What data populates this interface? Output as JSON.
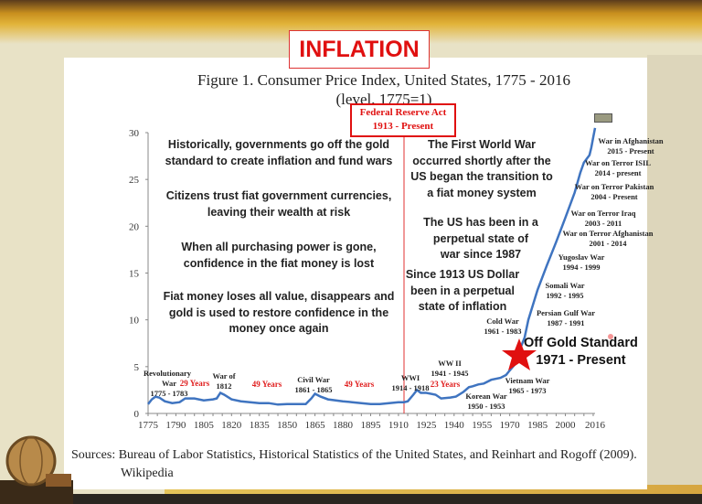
{
  "slide": {
    "heading": "INFLATION",
    "colors": {
      "accent_red": "#e01010",
      "line_blue": "#3f74c0",
      "background": "#e8e2c6"
    }
  },
  "chart_data": {
    "type": "line",
    "title": "Figure 1. Consumer Price Index, United States,  1775 - 2016",
    "subtitle": "(level, 1775=1)",
    "xlabel": "",
    "ylabel": "",
    "xlim": [
      1775,
      2016
    ],
    "ylim": [
      0,
      30
    ],
    "grid": false,
    "x_ticks": [
      "1775",
      "1790",
      "1805",
      "1820",
      "1835",
      "1850",
      "1865",
      "1880",
      "1895",
      "1910",
      "1925",
      "1940",
      "1955",
      "1970",
      "1985",
      "2000",
      "2016"
    ],
    "y_ticks": [
      "0",
      "5",
      "10",
      "15",
      "20",
      "25",
      "30"
    ],
    "series": [
      {
        "x": [
          1775,
          1777,
          1779,
          1781,
          1784,
          1788,
          1792,
          1795,
          1800,
          1805,
          1810,
          1812,
          1814,
          1816,
          1820,
          1825,
          1830,
          1835,
          1840,
          1845,
          1850,
          1855,
          1860,
          1863,
          1865,
          1868,
          1872,
          1880,
          1885,
          1890,
          1895,
          1900,
          1905,
          1910,
          1913,
          1915,
          1918,
          1920,
          1922,
          1925,
          1930,
          1933,
          1938,
          1941,
          1945,
          1948,
          1950,
          1953,
          1956,
          1960,
          1965,
          1968,
          1970,
          1973,
          1975,
          1978,
          1980,
          1985,
          1990,
          1995,
          2000,
          2005,
          2008,
          2010,
          2013,
          2014,
          2015,
          2016
        ],
        "y": [
          1.0,
          1.5,
          1.8,
          1.7,
          1.3,
          1.1,
          1.2,
          1.6,
          1.6,
          1.4,
          1.5,
          1.6,
          2.2,
          2.0,
          1.5,
          1.3,
          1.2,
          1.1,
          1.1,
          0.95,
          1.0,
          1.0,
          1.0,
          1.6,
          2.1,
          1.8,
          1.5,
          1.3,
          1.2,
          1.1,
          1.0,
          1.0,
          1.1,
          1.2,
          1.2,
          1.3,
          2.0,
          2.5,
          2.2,
          2.2,
          2.0,
          1.6,
          1.7,
          1.8,
          2.3,
          2.8,
          2.9,
          3.1,
          3.2,
          3.6,
          3.8,
          4.1,
          4.6,
          5.3,
          6.6,
          8.1,
          10.0,
          13.2,
          15.8,
          18.3,
          20.9,
          23.6,
          25.7,
          26.8,
          27.6,
          28.4,
          29.5,
          30.5
        ]
      }
    ],
    "annotations": {
      "fed_reserve": [
        "Federal Reserve Act",
        "1913 - Present"
      ],
      "off_gold": [
        "Off Gold Standard",
        "1971 - Present"
      ],
      "wars": [
        {
          "lines": [
            "Revolutionary",
            "War",
            "1775 - 1783"
          ]
        },
        {
          "lines": [
            "War of",
            "1812"
          ]
        },
        {
          "lines": [
            "Civil War",
            "1861 - 1865"
          ]
        },
        {
          "lines": [
            "WWI",
            "1914 - 1918"
          ]
        },
        {
          "lines": [
            "WW II",
            "1941 - 1945"
          ]
        },
        {
          "lines": [
            "Korean War",
            "1950 - 1953"
          ]
        },
        {
          "lines": [
            "Vietnam War",
            "1965 - 1973"
          ]
        },
        {
          "lines": [
            "Cold War",
            "1961 - 1983"
          ]
        },
        {
          "lines": [
            "Persian Gulf War",
            "1987 - 1991"
          ]
        },
        {
          "lines": [
            "Somali War",
            "1992 - 1995"
          ]
        },
        {
          "lines": [
            "Yugoslav War",
            "1994 - 1999"
          ]
        },
        {
          "lines": [
            "War on Terror Afghanistan",
            "2001 - 2014"
          ]
        },
        {
          "lines": [
            "War on Terror Iraq",
            "2003 - 2011"
          ]
        },
        {
          "lines": [
            "War on Terror Pakistan",
            "2004 - Present"
          ]
        },
        {
          "lines": [
            "War on Terror ISIL",
            "2014 - present"
          ]
        },
        {
          "lines": [
            "War in Afghanistan",
            "2015 - Present"
          ]
        }
      ],
      "gaps": [
        "29 Years",
        "49 Years",
        "49 Years",
        "23 Years"
      ]
    }
  },
  "notes_left": [
    [
      "Historically, governments go off the gold",
      "standard to create inflation and fund wars"
    ],
    [
      "Citizens trust fiat government currencies,",
      "leaving their wealth at risk"
    ],
    [
      "When all purchasing power is gone,",
      "confidence in the fiat money is lost"
    ],
    [
      "Fiat money loses all value, disappears and",
      "gold is used to restore confidence in the",
      "money once again"
    ]
  ],
  "notes_right": [
    [
      "The First World War",
      "occurred shortly after the",
      "US began the transition to",
      "a fiat money system"
    ],
    [
      "The US has been in a",
      "perpetual state of",
      "war since 1987"
    ],
    [
      "Since 1913 US Dollar",
      "been in a perpetual",
      "state of inflation"
    ]
  ],
  "sources": {
    "line1": "Sources: Bureau of Labor Statistics, Historical Statistics of the United States, and Reinhart and Rogoff (2009).",
    "line2": "Wikipedia"
  }
}
